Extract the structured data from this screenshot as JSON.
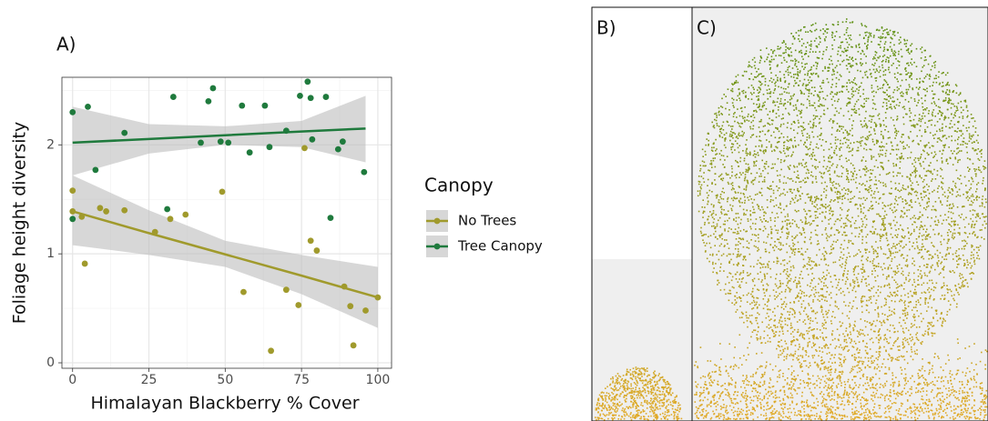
{
  "chart_data": {
    "type": "scatter",
    "panel_label": "A)",
    "x_label": "Himalayan Blackberry % Cover",
    "y_label": "Foliage height diversity",
    "xlim": [
      -3.5,
      104.5
    ],
    "ylim": [
      -0.05,
      2.62
    ],
    "xticks": [
      0,
      25,
      50,
      75,
      100
    ],
    "yticks": [
      0,
      1,
      2
    ],
    "xminor": [
      12.5,
      37.5,
      62.5,
      87.5
    ],
    "yminor": [
      0.5,
      1.5,
      2.5
    ],
    "grid": true,
    "legend_title": "Canopy",
    "legend_position": "right",
    "band_color": "#bdbdbd",
    "series": [
      {
        "name": "No Trees",
        "color": "#a09a2c",
        "x": [
          0,
          0,
          3,
          4,
          9,
          11,
          17,
          27,
          32,
          37,
          49,
          56,
          65,
          70,
          74,
          76,
          78,
          80,
          89,
          91,
          92,
          96,
          100
        ],
        "values": [
          1.58,
          1.39,
          1.34,
          0.91,
          1.42,
          1.39,
          1.4,
          1.2,
          1.32,
          1.36,
          1.57,
          0.65,
          0.11,
          0.67,
          0.53,
          1.97,
          1.12,
          1.03,
          0.7,
          0.52,
          0.16,
          0.48,
          0.6
        ],
        "fit_x": [
          0,
          25,
          50,
          75,
          100
        ],
        "fit": [
          1.39,
          1.19,
          0.995,
          0.8,
          0.6
        ],
        "ci_upper": [
          1.72,
          1.4,
          1.12,
          0.99,
          0.88
        ],
        "ci_lower": [
          1.08,
          0.99,
          0.88,
          0.63,
          0.32
        ]
      },
      {
        "name": "Tree Canopy",
        "color": "#1f7a3d",
        "x": [
          0,
          0,
          5,
          7.5,
          17,
          31,
          33,
          42,
          44.5,
          46,
          48.5,
          51,
          55.5,
          58,
          63,
          64.5,
          70,
          74.5,
          77,
          78,
          78.5,
          83,
          84.5,
          87,
          88.5,
          95.5
        ],
        "values": [
          2.3,
          1.32,
          2.35,
          1.77,
          2.11,
          1.41,
          2.44,
          2.02,
          2.4,
          2.52,
          2.03,
          2.02,
          2.36,
          1.93,
          2.36,
          1.98,
          2.13,
          2.45,
          2.58,
          2.43,
          2.05,
          2.44,
          1.33,
          1.96,
          2.03,
          1.75
        ],
        "fit_x": [
          0,
          25,
          50,
          75,
          96
        ],
        "fit": [
          2.02,
          2.054,
          2.088,
          2.122,
          2.15
        ],
        "ci_upper": [
          2.35,
          2.19,
          2.17,
          2.22,
          2.45
        ],
        "ci_lower": [
          1.72,
          1.92,
          2.0,
          1.98,
          1.84
        ]
      }
    ]
  },
  "panels": {
    "b_label": "B)",
    "c_label": "C)"
  }
}
